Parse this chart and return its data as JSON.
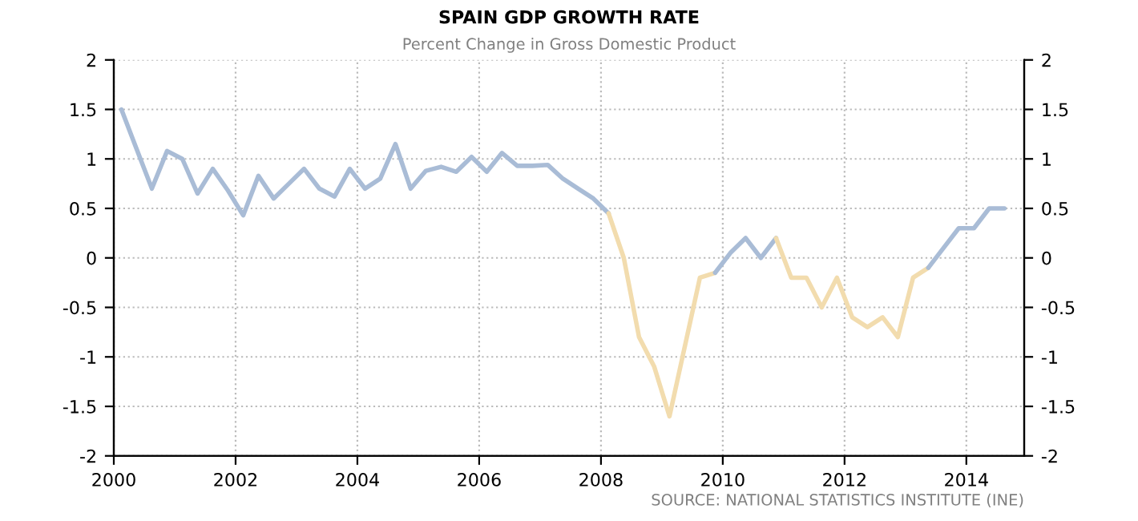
{
  "chart_data": {
    "type": "line",
    "title": "SPAIN GDP GROWTH RATE",
    "subtitle": "Percent Change in Gross Domestic Product",
    "series": [
      {
        "color": "#a9bcd6",
        "x": [
          2000.125,
          2000.375,
          2000.625,
          2000.875,
          2001.125,
          2001.375,
          2001.625,
          2001.875,
          2002.125,
          2002.375,
          2002.625,
          2002.875,
          2003.125,
          2003.375,
          2003.625,
          2003.875,
          2004.125,
          2004.375,
          2004.625,
          2004.875,
          2005.125,
          2005.375,
          2005.625,
          2005.875,
          2006.125,
          2006.375,
          2006.625,
          2006.875,
          2007.125,
          2007.375,
          2007.625,
          2007.875,
          2008.125
        ],
        "values": [
          1.5,
          1.1,
          0.7,
          1.08,
          1.0,
          0.65,
          0.9,
          0.68,
          0.43,
          0.83,
          0.6,
          0.75,
          0.9,
          0.7,
          0.62,
          0.9,
          0.7,
          0.8,
          1.15,
          0.7,
          0.88,
          0.92,
          0.87,
          1.02,
          0.87,
          1.06,
          0.93,
          0.93,
          0.94,
          0.8,
          0.7,
          0.6,
          0.45
        ]
      },
      {
        "color": "#f2dcae",
        "x": [
          2008.125,
          2008.375,
          2008.625,
          2008.875,
          2009.125,
          2009.375,
          2009.625,
          2009.875
        ],
        "values": [
          0.45,
          0.0,
          -0.8,
          -1.1,
          -1.6,
          -0.9,
          -0.2,
          -0.15
        ]
      },
      {
        "color": "#a9bcd6",
        "x": [
          2009.875,
          2010.125,
          2010.375,
          2010.625,
          2010.875
        ],
        "values": [
          -0.15,
          0.05,
          0.2,
          0.0,
          0.2
        ]
      },
      {
        "color": "#f2dcae",
        "x": [
          2010.875,
          2011.125,
          2011.375,
          2011.625,
          2011.875,
          2012.125,
          2012.375,
          2012.625,
          2012.875,
          2013.125,
          2013.375
        ],
        "values": [
          0.2,
          -0.2,
          -0.2,
          -0.5,
          -0.2,
          -0.6,
          -0.7,
          -0.6,
          -0.8,
          -0.2,
          -0.1
        ]
      },
      {
        "color": "#a9bcd6",
        "x": [
          2013.375,
          2013.625,
          2013.875,
          2014.125,
          2014.375,
          2014.625
        ],
        "values": [
          -0.1,
          0.1,
          0.3,
          0.3,
          0.5,
          0.5
        ]
      }
    ],
    "xlim": [
      2000,
      2014.95
    ],
    "xticks": [
      2000,
      2002,
      2004,
      2006,
      2008,
      2010,
      2012,
      2014
    ],
    "ylim": [
      -2,
      2
    ],
    "yticks": [
      -2,
      -1.5,
      -1,
      -0.5,
      0,
      0.5,
      1,
      1.5,
      2
    ],
    "y2lim": [
      -2,
      2
    ],
    "y2ticks": [
      -2,
      -1.5,
      -1,
      -0.5,
      0,
      0.5,
      1,
      1.5,
      2
    ],
    "grid": true,
    "line_style": "solid",
    "marker": "none",
    "annotations": [
      "SOURCE: NATIONAL STATISTICS INSTITUTE (INE)"
    ]
  }
}
